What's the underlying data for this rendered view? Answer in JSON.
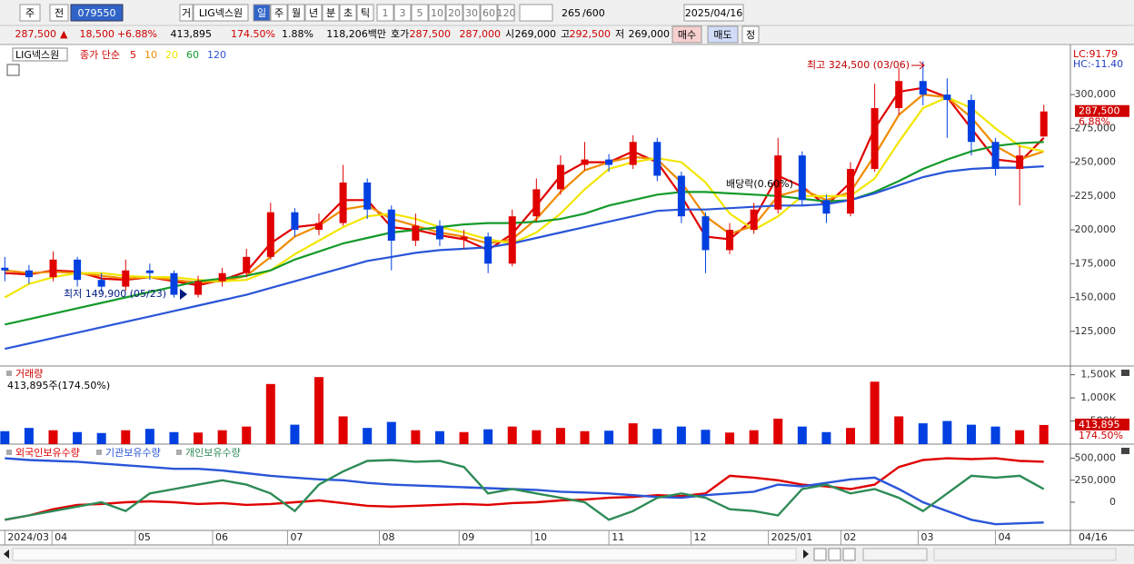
{
  "toolbar": {
    "period_type": "주",
    "all": "전",
    "code": "079550",
    "flag": "거",
    "name": "LIG넥스원",
    "periods": [
      "일",
      "주",
      "월",
      "년",
      "분",
      "초",
      "틱"
    ],
    "intervals": [
      "1",
      "3",
      "5",
      "10",
      "20",
      "30",
      "60",
      "120"
    ],
    "count": "265",
    "max": "/600",
    "date": "2025/04/16"
  },
  "quote": {
    "price": "287,500",
    "arrow": "▲",
    "change": "18,500",
    "rate": "+6.88%",
    "volume": "413,895",
    "vol_ratio": "174.50%",
    "turnover": "1.88%",
    "amount": "118,206백만",
    "ask_label": "호가",
    "ask": "287,500",
    "bid": "287,000",
    "open_label": "시",
    "open": "269,000",
    "high_label": "고",
    "high": "292,500",
    "low_label": "저",
    "low": "269,000",
    "buy": "매수",
    "sell": "매도",
    "correct": "정"
  },
  "chart_data": [
    {
      "type": "candlestick",
      "title": "LIG넥스원",
      "ma_label": "종가 단순",
      "up_color": "#e00000",
      "down_color": "#0040e0",
      "open": [
        172000,
        170000,
        165000,
        178000,
        163000,
        158000,
        170000,
        168000,
        152000,
        162000,
        168000,
        180000,
        213000,
        200000,
        205000,
        235000,
        215000,
        192000,
        203000,
        193000,
        195000,
        175000,
        210000,
        230000,
        248000,
        252000,
        248000,
        265000,
        240000,
        210000,
        185000,
        200000,
        215000,
        255000,
        222000,
        212000,
        245000,
        290000,
        310000,
        300000,
        296000,
        265000,
        245000,
        269000
      ],
      "high": [
        180000,
        174000,
        184000,
        180000,
        168000,
        178000,
        175000,
        170000,
        166000,
        172000,
        186000,
        220000,
        216000,
        212000,
        248000,
        238000,
        218000,
        212000,
        207000,
        200000,
        198000,
        215000,
        238000,
        255000,
        265000,
        256000,
        270000,
        268000,
        243000,
        213000,
        205000,
        220000,
        268000,
        258000,
        226000,
        250000,
        308000,
        320000,
        324500,
        312000,
        300000,
        268000,
        262000,
        292500
      ],
      "low": [
        162000,
        160000,
        162000,
        158000,
        154000,
        155000,
        163000,
        149900,
        150000,
        158000,
        165000,
        178000,
        195000,
        196000,
        203000,
        208000,
        170000,
        188000,
        188000,
        186000,
        168000,
        173000,
        206000,
        226000,
        244000,
        243000,
        245000,
        236000,
        205000,
        168000,
        182000,
        197000,
        212000,
        218000,
        205000,
        210000,
        243000,
        285000,
        292000,
        268000,
        255000,
        240000,
        218000,
        269000
      ],
      "close": [
        170000,
        165000,
        178000,
        163000,
        158000,
        170000,
        168000,
        152000,
        162000,
        168000,
        180000,
        213000,
        200000,
        205000,
        235000,
        215000,
        192000,
        203000,
        193000,
        195000,
        175000,
        210000,
        230000,
        248000,
        252000,
        248000,
        265000,
        240000,
        210000,
        185000,
        200000,
        215000,
        255000,
        222000,
        212000,
        245000,
        290000,
        310000,
        300000,
        296000,
        265000,
        245000,
        255000,
        287500
      ],
      "series": [
        {
          "name": "5",
          "color": "#e00000",
          "values": [
            168000,
            167000,
            170000,
            169000,
            164000,
            163000,
            165000,
            162000,
            159000,
            163000,
            169000,
            190000,
            202000,
            204000,
            222000,
            222000,
            202000,
            200000,
            196000,
            193000,
            185000,
            197000,
            218000,
            240000,
            250000,
            250000,
            258000,
            250000,
            225000,
            195000,
            193000,
            208000,
            240000,
            232000,
            218000,
            235000,
            275000,
            302000,
            305000,
            298000,
            275000,
            252000,
            250000,
            268000
          ]
        },
        {
          "name": "10",
          "color": "#f08c00",
          "values": [
            170000,
            168000,
            169000,
            168000,
            166000,
            164000,
            165000,
            163000,
            161000,
            162000,
            166000,
            180000,
            195000,
            203000,
            215000,
            218000,
            208000,
            203000,
            198000,
            195000,
            190000,
            193000,
            208000,
            228000,
            244000,
            250000,
            254000,
            252000,
            235000,
            210000,
            197000,
            203000,
            225000,
            230000,
            222000,
            228000,
            255000,
            285000,
            300000,
            298000,
            283000,
            262000,
            252000,
            258000
          ]
        },
        {
          "name": "20",
          "color": "#f2e600",
          "values": [
            150000,
            160000,
            165000,
            168000,
            168000,
            166000,
            165000,
            165000,
            163000,
            162000,
            163000,
            170000,
            182000,
            192000,
            202000,
            210000,
            212000,
            208000,
            202000,
            198000,
            193000,
            190000,
            198000,
            212000,
            230000,
            245000,
            250000,
            253000,
            250000,
            235000,
            212000,
            200000,
            210000,
            225000,
            225000,
            225000,
            238000,
            265000,
            290000,
            298000,
            290000,
            275000,
            262000,
            258000
          ]
        },
        {
          "name": "60",
          "color": "#139a2a",
          "values": [
            130000,
            134000,
            138000,
            142000,
            146000,
            150000,
            154000,
            158000,
            162000,
            164000,
            166000,
            170000,
            178000,
            184000,
            190000,
            194000,
            198000,
            200000,
            202000,
            204000,
            205000,
            205000,
            206000,
            208000,
            212000,
            218000,
            222000,
            226000,
            228000,
            228000,
            227000,
            226000,
            225000,
            223000,
            221000,
            222000,
            228000,
            236000,
            245000,
            252000,
            258000,
            262000,
            264000,
            265000
          ]
        },
        {
          "name": "120",
          "color": "#2a55d8",
          "values": [
            112000,
            116000,
            120000,
            124000,
            128000,
            132000,
            136000,
            140000,
            144000,
            148000,
            152000,
            157000,
            162000,
            167000,
            172000,
            177000,
            180000,
            183000,
            185000,
            186000,
            187000,
            190000,
            194000,
            198000,
            202000,
            206000,
            210000,
            214000,
            215000,
            215000,
            216000,
            217000,
            218000,
            218000,
            219000,
            222000,
            227000,
            233000,
            239000,
            243000,
            245000,
            246000,
            246000,
            247000
          ]
        }
      ],
      "ylim": [
        100000,
        335000
      ],
      "yticks": [
        {
          "value": 125000,
          "label": "125,000"
        },
        {
          "value": 150000,
          "label": "150,000"
        },
        {
          "value": 175000,
          "label": "175,000"
        },
        {
          "value": 200000,
          "label": "200,000"
        },
        {
          "value": 225000,
          "label": "225,000"
        },
        {
          "value": 250000,
          "label": "250,000"
        },
        {
          "value": 275000,
          "label": "275,000"
        },
        {
          "value": 300000,
          "label": "300,000"
        }
      ],
      "xlim": [
        -0.2,
        44.1
      ],
      "xticks": [
        {
          "value": 0,
          "label": "2024/03"
        },
        {
          "value": 1.95,
          "label": "04"
        },
        {
          "value": 5.4,
          "label": "05"
        },
        {
          "value": 8.6,
          "label": "06"
        },
        {
          "value": 11.7,
          "label": "07"
        },
        {
          "value": 15.5,
          "label": "08"
        },
        {
          "value": 18.8,
          "label": "09"
        },
        {
          "value": 21.8,
          "label": "10"
        },
        {
          "value": 25,
          "label": "11"
        },
        {
          "value": 28.4,
          "label": "12"
        },
        {
          "value": 31.6,
          "label": "2025/01"
        },
        {
          "value": 34.6,
          "label": "02"
        },
        {
          "value": 37.8,
          "label": "03"
        },
        {
          "value": 41,
          "label": "04"
        }
      ],
      "date_end": "04/16",
      "high_note": "최고 324,500 (03/06)",
      "low_note": "최저 149,900 (05/23)",
      "dividend_note": "배당락(0.60%)",
      "lc": "LC:91.79",
      "hc": "HC:-11.40",
      "last_price": {
        "value": 287500,
        "label": "287,500"
      },
      "last_rate": "6.88%"
    },
    {
      "type": "bar",
      "title": "거래량",
      "subtitle": "413,895주(174.50%)",
      "values": [
        280000,
        350000,
        300000,
        260000,
        240000,
        300000,
        330000,
        260000,
        250000,
        300000,
        380000,
        1300000,
        420000,
        1450000,
        600000,
        350000,
        480000,
        300000,
        280000,
        260000,
        320000,
        380000,
        300000,
        350000,
        280000,
        290000,
        450000,
        330000,
        380000,
        310000,
        250000,
        300000,
        550000,
        380000,
        260000,
        350000,
        1350000,
        600000,
        450000,
        500000,
        420000,
        380000,
        300000,
        413895
      ],
      "ylim": [
        0,
        1650000
      ],
      "yticks": [
        {
          "value": 500000,
          "label": "500K"
        },
        {
          "value": 1000000,
          "label": "1,000K"
        },
        {
          "value": 1500000,
          "label": "1,500K"
        }
      ],
      "last_value": {
        "value": 413895,
        "label": "413,895"
      },
      "last_rate": "174.50%"
    },
    {
      "type": "line",
      "series": [
        {
          "name": "외국인보유수량",
          "color": "#e00000",
          "values": [
            -200000,
            -150000,
            -80000,
            -30000,
            -20000,
            0,
            10000,
            0,
            -20000,
            -10000,
            -30000,
            -20000,
            0,
            20000,
            -10000,
            -40000,
            -50000,
            -40000,
            -30000,
            -20000,
            -30000,
            -10000,
            0,
            20000,
            30000,
            50000,
            60000,
            80000,
            70000,
            100000,
            300000,
            280000,
            250000,
            200000,
            180000,
            150000,
            200000,
            400000,
            480000,
            500000,
            490000,
            500000,
            470000,
            460000
          ]
        },
        {
          "name": "기관보유수량",
          "color": "#2a55d8",
          "values": [
            500000,
            480000,
            470000,
            460000,
            440000,
            420000,
            400000,
            380000,
            380000,
            360000,
            330000,
            300000,
            280000,
            260000,
            250000,
            220000,
            200000,
            190000,
            180000,
            170000,
            160000,
            150000,
            140000,
            120000,
            110000,
            100000,
            80000,
            60000,
            50000,
            80000,
            100000,
            120000,
            200000,
            180000,
            220000,
            260000,
            280000,
            150000,
            0,
            -100000,
            -200000,
            -250000,
            -240000,
            -230000
          ]
        },
        {
          "name": "개인보유수량",
          "color": "#2e8b57",
          "values": [
            -200000,
            -150000,
            -100000,
            -50000,
            0,
            -100000,
            100000,
            150000,
            200000,
            250000,
            200000,
            100000,
            -100000,
            200000,
            350000,
            470000,
            480000,
            460000,
            470000,
            400000,
            100000,
            150000,
            100000,
            50000,
            0,
            -200000,
            -100000,
            50000,
            100000,
            50000,
            -80000,
            -100000,
            -150000,
            150000,
            200000,
            100000,
            150000,
            50000,
            -100000,
            100000,
            300000,
            280000,
            300000,
            150000
          ]
        }
      ],
      "ylim": [
        -310000,
        640000
      ],
      "yticks": [
        0,
        {
          "value": 250000,
          "label": "250,000"
        },
        {
          "value": 500000,
          "label": "500,000"
        }
      ]
    }
  ]
}
